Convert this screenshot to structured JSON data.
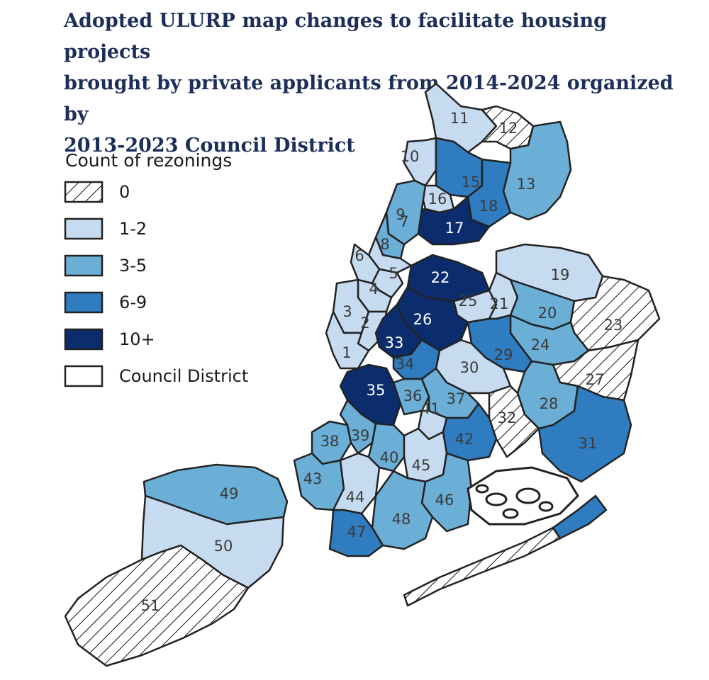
{
  "title": {
    "line1": "Adopted ULURP map changes to facilitate housing projects",
    "line2": "brought by private applicants from 2014-2024 organized by",
    "line3": "2013-2023 Council District"
  },
  "legend": {
    "title": "Count of rezonings",
    "items": [
      {
        "key": "c0",
        "label": "0",
        "pattern": "hatch"
      },
      {
        "key": "c1",
        "label": "1-2",
        "color": "#c6dbef"
      },
      {
        "key": "c2",
        "label": "3-5",
        "color": "#6baed6"
      },
      {
        "key": "c3",
        "label": "6-9",
        "color": "#2f7cc0"
      },
      {
        "key": "c4",
        "label": "10+",
        "color": "#0b2d6e"
      },
      {
        "key": "outline",
        "label": "Council District",
        "pattern": "outline"
      }
    ]
  },
  "colors": {
    "c0": "#ffffff",
    "c1": "#c6dbef",
    "c2": "#6baed6",
    "c3": "#2f7cc0",
    "c4": "#0b2d6e",
    "title": "#1c2f5a"
  },
  "districts": [
    {
      "num": "1",
      "cat": "c1"
    },
    {
      "num": "2",
      "cat": "c1"
    },
    {
      "num": "3",
      "cat": "c1"
    },
    {
      "num": "4",
      "cat": "c1"
    },
    {
      "num": "5",
      "cat": "c1"
    },
    {
      "num": "6",
      "cat": "c1"
    },
    {
      "num": "7",
      "cat": "c2"
    },
    {
      "num": "8",
      "cat": "c1"
    },
    {
      "num": "9",
      "cat": "c2"
    },
    {
      "num": "10",
      "cat": "c1"
    },
    {
      "num": "11",
      "cat": "c1"
    },
    {
      "num": "12",
      "cat": "c0"
    },
    {
      "num": "13",
      "cat": "c2"
    },
    {
      "num": "15",
      "cat": "c3"
    },
    {
      "num": "16",
      "cat": "c1"
    },
    {
      "num": "17",
      "cat": "c4"
    },
    {
      "num": "18",
      "cat": "c3"
    },
    {
      "num": "19",
      "cat": "c1"
    },
    {
      "num": "20",
      "cat": "c2"
    },
    {
      "num": "21",
      "cat": "c1"
    },
    {
      "num": "22",
      "cat": "c4"
    },
    {
      "num": "23",
      "cat": "c0"
    },
    {
      "num": "24",
      "cat": "c2"
    },
    {
      "num": "25",
      "cat": "c1"
    },
    {
      "num": "26",
      "cat": "c4"
    },
    {
      "num": "27",
      "cat": "c0"
    },
    {
      "num": "28",
      "cat": "c2"
    },
    {
      "num": "29",
      "cat": "c3"
    },
    {
      "num": "30",
      "cat": "c1"
    },
    {
      "num": "31",
      "cat": "c3"
    },
    {
      "num": "32",
      "cat": "c0"
    },
    {
      "num": "33",
      "cat": "c4"
    },
    {
      "num": "34",
      "cat": "c3"
    },
    {
      "num": "35",
      "cat": "c4"
    },
    {
      "num": "36",
      "cat": "c2"
    },
    {
      "num": "37",
      "cat": "c2"
    },
    {
      "num": "38",
      "cat": "c2"
    },
    {
      "num": "39",
      "cat": "c2"
    },
    {
      "num": "40",
      "cat": "c2"
    },
    {
      "num": "41",
      "cat": "c1"
    },
    {
      "num": "42",
      "cat": "c3"
    },
    {
      "num": "43",
      "cat": "c2"
    },
    {
      "num": "44",
      "cat": "c1"
    },
    {
      "num": "45",
      "cat": "c1"
    },
    {
      "num": "46",
      "cat": "c2"
    },
    {
      "num": "47",
      "cat": "c3"
    },
    {
      "num": "48",
      "cat": "c2"
    },
    {
      "num": "49",
      "cat": "c2"
    },
    {
      "num": "50",
      "cat": "c1"
    },
    {
      "num": "51",
      "cat": "c0"
    }
  ]
}
